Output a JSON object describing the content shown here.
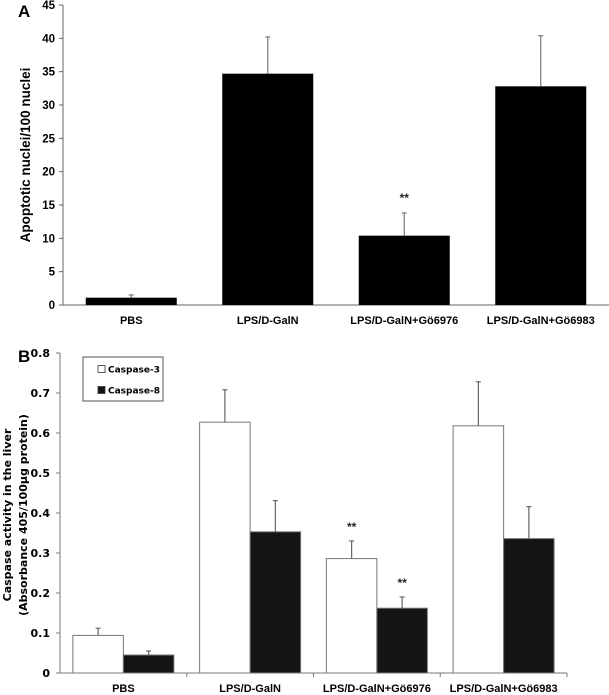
{
  "chart_data": [
    {
      "panel": "A",
      "type": "bar",
      "title": "",
      "xlabel": "",
      "ylabel": "Apoptotic nuclei/100 nuclei",
      "ylim": [
        0,
        45
      ],
      "yticks": [
        0,
        5,
        10,
        15,
        20,
        25,
        30,
        35,
        40,
        45
      ],
      "categories": [
        "PBS",
        "LPS/D-GalN",
        "LPS/D-GalN+Gö6976",
        "LPS/D-GalN+Gö6983"
      ],
      "series": [
        {
          "name": "Apoptotic nuclei",
          "color": "#000000",
          "values": [
            1.1,
            34.7,
            10.4,
            32.8
          ],
          "errors": [
            0.4,
            5.5,
            3.4,
            7.6
          ],
          "significance": [
            "",
            "",
            "**",
            ""
          ]
        }
      ],
      "grid": false,
      "legend": null
    },
    {
      "panel": "B",
      "type": "bar",
      "title": "",
      "xlabel": "",
      "ylabel": [
        "Caspase activity in the liver",
        "(Absorbance 405/100µg protein)"
      ],
      "ylim": [
        0,
        0.8
      ],
      "yticks": [
        "0",
        "0.1",
        "0.2",
        "0.3",
        "0.4",
        "0.5",
        "0.6",
        "0.7",
        "0.8"
      ],
      "categories": [
        "PBS",
        "LPS/D-GalN",
        "LPS/D-GalN+Gö6976",
        "LPS/D-GalN+Gö6983"
      ],
      "series": [
        {
          "name": "Caspase-3",
          "color": "#ffffff",
          "values": [
            0.094,
            0.627,
            0.286,
            0.618
          ],
          "errors": [
            0.018,
            0.081,
            0.044,
            0.11
          ],
          "significance": [
            "",
            "",
            "**",
            ""
          ]
        },
        {
          "name": "Caspase-8",
          "color": "#141414",
          "values": [
            0.045,
            0.353,
            0.162,
            0.336
          ],
          "errors": [
            0.01,
            0.078,
            0.028,
            0.08
          ],
          "significance": [
            "",
            "",
            "**",
            ""
          ]
        }
      ],
      "grid": false,
      "legend": "top-left"
    }
  ]
}
